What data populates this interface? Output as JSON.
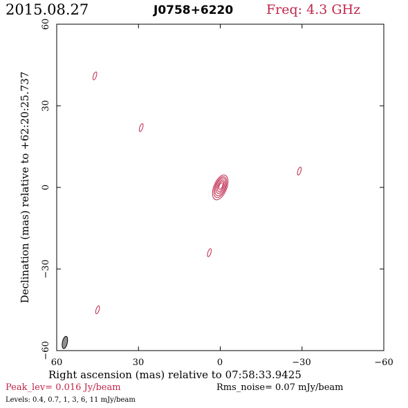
{
  "header": {
    "date": "2015.08.27",
    "source": "J0758+6220",
    "freq": "Freq: 4.3 GHz"
  },
  "colors": {
    "contour": "#c0254a",
    "axes": "#000000",
    "beam_fill": "#909090",
    "label_accent": "#c0254a"
  },
  "chart_data": {
    "type": "contour",
    "xlabel": "Right ascension (mas) relative to 07:58:33.9425",
    "ylabel": "Declination (mas) relative to +62:20:25.737",
    "xlim": [
      60,
      -60
    ],
    "ylim": [
      -60,
      60
    ],
    "x_ticks": [
      "60",
      "30",
      "0",
      "−30",
      "−60"
    ],
    "y_ticks": [
      "60",
      "30",
      "0",
      "−30",
      "−60"
    ],
    "contour_levels_mJy": [
      0.4,
      0.7,
      1,
      3,
      6,
      11
    ],
    "peak_label": "Peak_lev=  0.016 Jy/beam",
    "rms_label": "Rms_noise= 0.07 mJy/beam",
    "levels_label": "Levels: 0.4, 0.7,   1,   3,   6,  11 mJy/beam",
    "core": {
      "ra": 0,
      "dec": 0
    },
    "features": [
      {
        "ra": 46,
        "dec": 41
      },
      {
        "ra": 29,
        "dec": 22
      },
      {
        "ra": -29,
        "dec": 6
      },
      {
        "ra": 4,
        "dec": -24
      },
      {
        "ra": 45,
        "dec": -45
      }
    ],
    "beam": {
      "ra": 57,
      "dec": -57
    }
  }
}
